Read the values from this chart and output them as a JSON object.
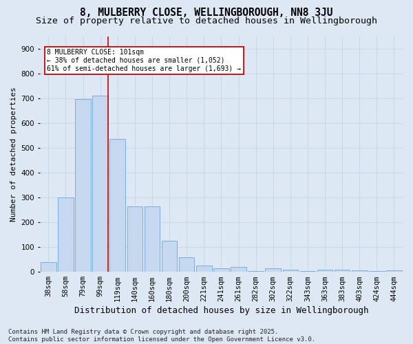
{
  "title": "8, MULBERRY CLOSE, WELLINGBOROUGH, NN8 3JU",
  "subtitle": "Size of property relative to detached houses in Wellingborough",
  "xlabel": "Distribution of detached houses by size in Wellingborough",
  "ylabel": "Number of detached properties",
  "categories": [
    "38sqm",
    "58sqm",
    "79sqm",
    "99sqm",
    "119sqm",
    "140sqm",
    "160sqm",
    "180sqm",
    "200sqm",
    "221sqm",
    "241sqm",
    "261sqm",
    "282sqm",
    "302sqm",
    "322sqm",
    "343sqm",
    "363sqm",
    "383sqm",
    "403sqm",
    "424sqm",
    "444sqm"
  ],
  "values": [
    40,
    300,
    695,
    710,
    535,
    265,
    265,
    125,
    60,
    25,
    15,
    20,
    2,
    15,
    10,
    2,
    10,
    10,
    5,
    2,
    5
  ],
  "bar_color": "#c5d8f0",
  "bar_edge_color": "#7aaedc",
  "grid_color": "#c8d8e8",
  "background_color": "#dde8f4",
  "vline_x_index": 3,
  "vline_color": "#cc0000",
  "annotation_text": "8 MULBERRY CLOSE: 101sqm\n← 38% of detached houses are smaller (1,052)\n61% of semi-detached houses are larger (1,693) →",
  "annotation_box_color": "#ffffff",
  "annotation_box_edge": "#cc0000",
  "ylim": [
    0,
    950
  ],
  "yticks": [
    0,
    100,
    200,
    300,
    400,
    500,
    600,
    700,
    800,
    900
  ],
  "footer": "Contains HM Land Registry data © Crown copyright and database right 2025.\nContains public sector information licensed under the Open Government Licence v3.0.",
  "title_fontsize": 10.5,
  "subtitle_fontsize": 9.5,
  "xlabel_fontsize": 9,
  "ylabel_fontsize": 8,
  "tick_fontsize": 7.5,
  "annotation_fontsize": 7,
  "footer_fontsize": 6.5
}
